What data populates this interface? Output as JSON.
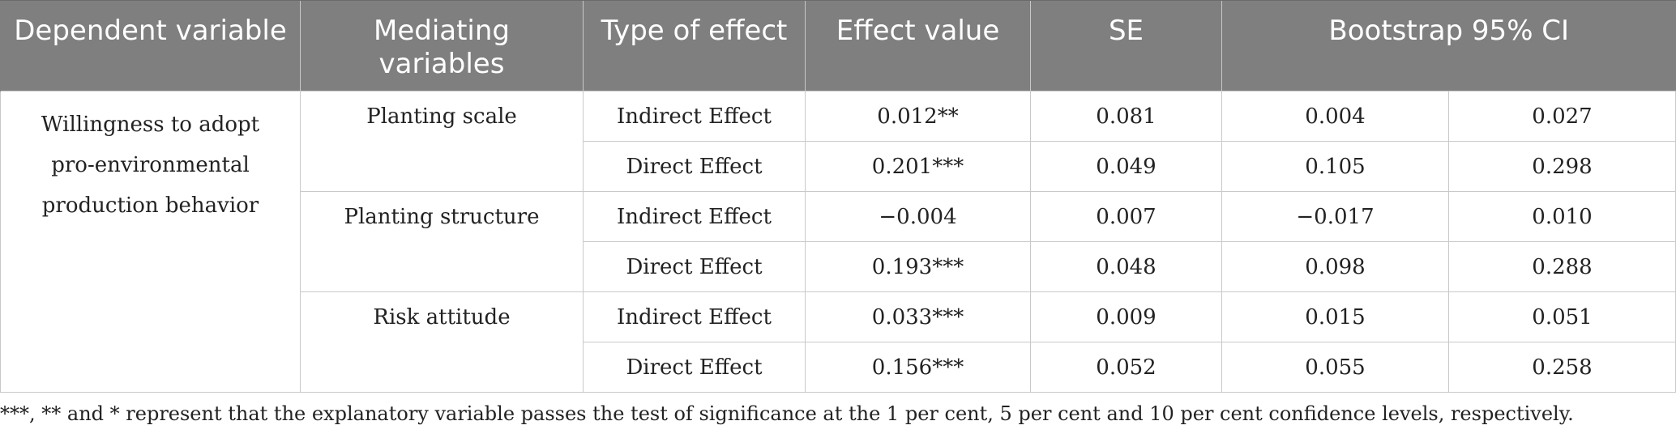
{
  "table": {
    "headers": [
      "Dependent variable",
      "Mediating variables",
      "Type of effect",
      "Effect value",
      "SE",
      "Bootstrap 95% CI"
    ],
    "dependent_variable": "Willingness to adopt pro-environmental production behavior",
    "groups": [
      {
        "mediator": "Planting scale",
        "rows": [
          {
            "type": "Indirect Effect",
            "effect": "0.012**",
            "se": "0.081",
            "ci_low": "0.004",
            "ci_high": "0.027"
          },
          {
            "type": "Direct Effect",
            "effect": "0.201***",
            "se": "0.049",
            "ci_low": "0.105",
            "ci_high": "0.298"
          }
        ]
      },
      {
        "mediator": "Planting structure",
        "rows": [
          {
            "type": "Indirect Effect",
            "effect": "−0.004",
            "se": "0.007",
            "ci_low": "−0.017",
            "ci_high": "0.010"
          },
          {
            "type": "Direct Effect",
            "effect": "0.193***",
            "se": "0.048",
            "ci_low": "0.098",
            "ci_high": "0.288"
          }
        ]
      },
      {
        "mediator": "Risk attitude",
        "rows": [
          {
            "type": "Indirect Effect",
            "effect": "0.033***",
            "se": "0.009",
            "ci_low": "0.015",
            "ci_high": "0.051"
          },
          {
            "type": "Direct Effect",
            "effect": "0.156***",
            "se": "0.052",
            "ci_low": "0.055",
            "ci_high": "0.258"
          }
        ]
      }
    ]
  },
  "footnote": "***, ** and * represent that the explanatory variable passes the test of significance at the 1 per cent, 5 per cent and 10 per cent confidence levels, respectively.",
  "colors": {
    "header_bg": "#7f7f7f",
    "header_text": "#ffffff",
    "grid": "#c9c9c9"
  }
}
